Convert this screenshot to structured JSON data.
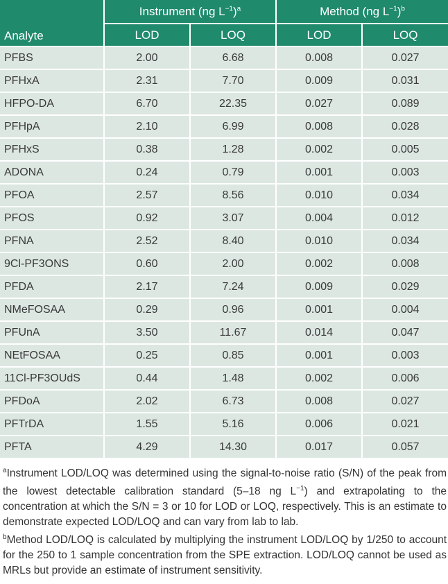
{
  "header": {
    "analyte": "Analyte",
    "instrument": "Instrument (ng L",
    "instrument_exp": "−1",
    "instrument_note": "a",
    "method": "Method (ng L",
    "method_exp": "−1",
    "method_note": "b",
    "lod": "LOD",
    "loq": "LOQ"
  },
  "rows": [
    {
      "analyte": "PFBS",
      "inst_lod": "2.00",
      "inst_loq": "6.68",
      "meth_lod": "0.008",
      "meth_loq": "0.027"
    },
    {
      "analyte": "PFHxA",
      "inst_lod": "2.31",
      "inst_loq": "7.70",
      "meth_lod": "0.009",
      "meth_loq": "0.031"
    },
    {
      "analyte": "HFPO-DA",
      "inst_lod": "6.70",
      "inst_loq": "22.35",
      "meth_lod": "0.027",
      "meth_loq": "0.089"
    },
    {
      "analyte": "PFHpA",
      "inst_lod": "2.10",
      "inst_loq": "6.99",
      "meth_lod": "0.008",
      "meth_loq": "0.028"
    },
    {
      "analyte": "PFHxS",
      "inst_lod": "0.38",
      "inst_loq": "1.28",
      "meth_lod": "0.002",
      "meth_loq": "0.005"
    },
    {
      "analyte": "ADONA",
      "inst_lod": "0.24",
      "inst_loq": "0.79",
      "meth_lod": "0.001",
      "meth_loq": "0.003"
    },
    {
      "analyte": "PFOA",
      "inst_lod": "2.57",
      "inst_loq": "8.56",
      "meth_lod": "0.010",
      "meth_loq": "0.034"
    },
    {
      "analyte": "PFOS",
      "inst_lod": "0.92",
      "inst_loq": "3.07",
      "meth_lod": "0.004",
      "meth_loq": "0.012"
    },
    {
      "analyte": "PFNA",
      "inst_lod": "2.52",
      "inst_loq": "8.40",
      "meth_lod": "0.010",
      "meth_loq": "0.034"
    },
    {
      "analyte": "9Cl-PF3ONS",
      "inst_lod": "0.60",
      "inst_loq": "2.00",
      "meth_lod": "0.002",
      "meth_loq": "0.008"
    },
    {
      "analyte": "PFDA",
      "inst_lod": "2.17",
      "inst_loq": "7.24",
      "meth_lod": "0.009",
      "meth_loq": "0.029"
    },
    {
      "analyte": "NMeFOSAA",
      "inst_lod": "0.29",
      "inst_loq": "0.96",
      "meth_lod": "0.001",
      "meth_loq": "0.004"
    },
    {
      "analyte": "PFUnA",
      "inst_lod": "3.50",
      "inst_loq": "11.67",
      "meth_lod": "0.014",
      "meth_loq": "0.047"
    },
    {
      "analyte": "NEtFOSAA",
      "inst_lod": "0.25",
      "inst_loq": "0.85",
      "meth_lod": "0.001",
      "meth_loq": "0.003"
    },
    {
      "analyte": "11Cl-PF3OUdS",
      "inst_lod": "0.44",
      "inst_loq": "1.48",
      "meth_lod": "0.002",
      "meth_loq": "0.006"
    },
    {
      "analyte": "PFDoA",
      "inst_lod": "2.02",
      "inst_loq": "6.73",
      "meth_lod": "0.008",
      "meth_loq": "0.027"
    },
    {
      "analyte": "PFTrDA",
      "inst_lod": "1.55",
      "inst_loq": "5.16",
      "meth_lod": "0.006",
      "meth_loq": "0.021"
    },
    {
      "analyte": "PFTA",
      "inst_lod": "4.29",
      "inst_loq": "14.30",
      "meth_lod": "0.017",
      "meth_loq": "0.057"
    }
  ],
  "footnotes": {
    "a_mark": "a",
    "a_text_1": "Instrument LOD/LOQ was determined using the signal-to-noise ratio (S/N) of the peak from the lowest detectable calibration standard (5–18 ng L",
    "a_exp": "−1",
    "a_text_2": ") and extrapolating to the concentration at which the S/N = 3 or 10 for LOD or LOQ, respectively. This is an estimate to demonstrate expected LOD/LOQ and can vary from lab to lab.",
    "b_mark": "b",
    "b_text": "Method LOD/LOQ is calculated by multiplying the instrument LOD/LOQ by 1/250 to account for the 250 to 1 sample concentration from the SPE extraction. LOD/LOQ cannot be used as MRLs but provide an estimate of instrument sensitivity."
  },
  "colors": {
    "header_bg": "#1f8a6c",
    "row_bg": "#dce7e1"
  }
}
